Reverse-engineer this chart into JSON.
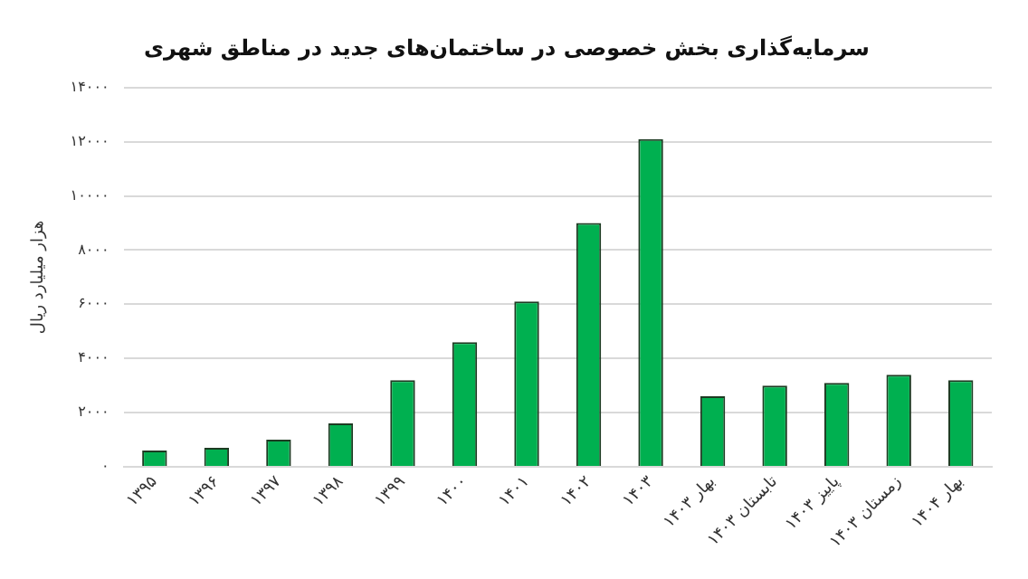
{
  "chart_data": {
    "type": "bar",
    "title": "سرمایه‌گذاری بخش خصوصی در ساختمان‌های جدید در مناطق شهری",
    "ylabel": "هزار میلیارد ریال",
    "categories": [
      "۱۳۹۵",
      "۱۳۹۶",
      "۱۳۹۷",
      "۱۳۹۸",
      "۱۳۹۹",
      "۱۴۰۰",
      "۱۴۰۱",
      "۱۴۰۲",
      "۱۴۰۳",
      "بهار ۱۴۰۳",
      "تابستان ۱۴۰۳",
      "پاییز ۱۴۰۳",
      "زمستان ۱۴۰۳",
      "بهار ۱۴۰۴"
    ],
    "values": [
      600,
      700,
      1000,
      1600,
      3200,
      4600,
      6100,
      9000,
      12100,
      2600,
      3000,
      3100,
      3400,
      3200
    ],
    "color": "#00b050",
    "ylim": [
      0,
      14000
    ],
    "yticks": [
      {
        "value": 0,
        "label": "۰"
      },
      {
        "value": 2000,
        "label": "۲۰۰۰"
      },
      {
        "value": 4000,
        "label": "۴۰۰۰"
      },
      {
        "value": 6000,
        "label": "۶۰۰۰"
      },
      {
        "value": 8000,
        "label": "۸۰۰۰"
      },
      {
        "value": 10000,
        "label": "۱۰۰۰۰"
      },
      {
        "value": 12000,
        "label": "۱۲۰۰۰"
      },
      {
        "value": 14000,
        "label": "۱۴۰۰۰"
      }
    ],
    "grid": "y",
    "legend": false
  }
}
